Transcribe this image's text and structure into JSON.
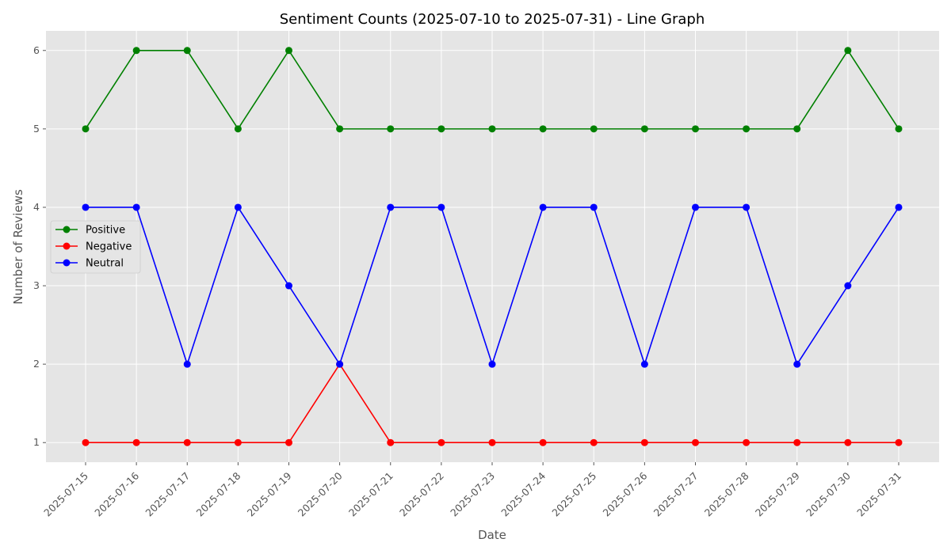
{
  "chart_data": {
    "type": "line",
    "title": "Sentiment Counts (2025-07-10 to 2025-07-31) - Line Graph",
    "xlabel": "Date",
    "ylabel": "Number of Reviews",
    "categories": [
      "2025-07-15",
      "2025-07-16",
      "2025-07-17",
      "2025-07-18",
      "2025-07-19",
      "2025-07-20",
      "2025-07-21",
      "2025-07-22",
      "2025-07-23",
      "2025-07-24",
      "2025-07-25",
      "2025-07-26",
      "2025-07-27",
      "2025-07-28",
      "2025-07-29",
      "2025-07-30",
      "2025-07-31"
    ],
    "series": [
      {
        "name": "Positive",
        "color": "#008000",
        "values": [
          5,
          6,
          6,
          5,
          6,
          5,
          5,
          5,
          5,
          5,
          5,
          5,
          5,
          5,
          5,
          6,
          5
        ]
      },
      {
        "name": "Negative",
        "color": "#ff0000",
        "values": [
          1,
          1,
          1,
          1,
          1,
          2,
          1,
          1,
          1,
          1,
          1,
          1,
          1,
          1,
          1,
          1,
          1
        ]
      },
      {
        "name": "Neutral",
        "color": "#0000ff",
        "values": [
          4,
          4,
          2,
          4,
          3,
          2,
          4,
          4,
          2,
          4,
          4,
          2,
          4,
          4,
          2,
          3,
          4
        ]
      }
    ],
    "ylim": [
      0.75,
      6.25
    ],
    "yticks": [
      1,
      2,
      3,
      4,
      5,
      6
    ],
    "grid": true,
    "legend_position": "center-left",
    "style": "ggplot"
  }
}
